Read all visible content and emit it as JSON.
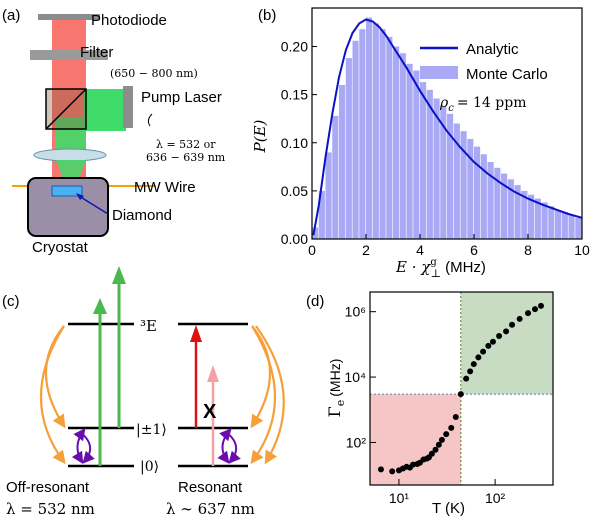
{
  "panel_a": {
    "label": "(a)",
    "photodiode": "Photodiode",
    "filter": "Filter",
    "filter_range": "(650 − 800 nm)",
    "pump_laser": "Pump Laser",
    "wavelength_line1": "λ = 532 or",
    "wavelength_line2": "636 − 639 nm",
    "mw_wire": "MW Wire",
    "diamond": "Diamond",
    "cryostat": "Cryostat"
  },
  "panel_b": {
    "label": "(b)",
    "legend_analytic": "Analytic",
    "legend_mc": "Monte Carlo",
    "rho_label": "ρ",
    "rho_sub": "c",
    "rho_value": "= 14 ppm",
    "ylabel_main": "P(E)",
    "xlabel_main": "E · χ",
    "xlabel_sup": "g",
    "xlabel_sub": "⊥",
    "xlabel_unit": "(MHz)",
    "colors": {
      "analytic": "#0a12c8",
      "mc": "#a9a9f5"
    }
  },
  "panel_c": {
    "label": "(c)",
    "level_3e": "³E",
    "level_pm1": "|±1⟩",
    "level_0": "|0⟩",
    "off_resonant": "Off-resonant",
    "off_resonant_wl": "λ = 532 nm",
    "resonant": "Resonant",
    "resonant_wl": "λ ∼ 637 nm",
    "cross": "X"
  },
  "panel_d": {
    "label": "(d)",
    "ylabel_main": "Γ",
    "ylabel_sub": "e",
    "ylabel_unit": "(MHz)",
    "xlabel": "T (K)",
    "colors": {
      "red_region": "#f6c5c5",
      "green_region": "#c8dcc4"
    }
  },
  "chart_data": [
    {
      "type": "bar",
      "panel": "b",
      "x_bin_width": 0.25,
      "x_start": 0,
      "values": [
        0.012,
        0.05,
        0.09,
        0.128,
        0.16,
        0.188,
        0.206,
        0.218,
        0.23,
        0.224,
        0.218,
        0.21,
        0.2,
        0.193,
        0.182,
        0.175,
        0.163,
        0.155,
        0.146,
        0.138,
        0.13,
        0.12,
        0.112,
        0.104,
        0.096,
        0.088,
        0.08,
        0.074,
        0.068,
        0.062,
        0.056,
        0.05,
        0.046,
        0.042,
        0.038,
        0.034,
        0.03,
        0.028,
        0.025,
        0.022
      ],
      "series_name": "Monte Carlo",
      "line_series": {
        "name": "Analytic",
        "x": [
          0.05,
          0.25,
          0.5,
          0.75,
          1.0,
          1.25,
          1.5,
          1.75,
          2.0,
          2.25,
          2.5,
          2.75,
          3.0,
          3.5,
          4.0,
          4.5,
          5.0,
          5.5,
          6.0,
          6.5,
          7.0,
          7.5,
          8.0,
          8.5,
          9.0,
          9.5,
          10.0
        ],
        "y": [
          0.004,
          0.035,
          0.085,
          0.13,
          0.168,
          0.196,
          0.214,
          0.224,
          0.228,
          0.226,
          0.22,
          0.211,
          0.2,
          0.178,
          0.154,
          0.132,
          0.112,
          0.095,
          0.08,
          0.068,
          0.058,
          0.049,
          0.042,
          0.036,
          0.031,
          0.026,
          0.022
        ]
      },
      "xlim": [
        0,
        10
      ],
      "ylim": [
        0,
        0.24
      ],
      "xticks": [
        "0",
        "2",
        "4",
        "6",
        "8",
        "10"
      ],
      "yticks": [
        "0.00",
        "0.05",
        "0.10",
        "0.15",
        "0.20"
      ],
      "ytick_values": [
        0,
        0.05,
        0.1,
        0.15,
        0.2
      ]
    },
    {
      "type": "scatter",
      "panel": "d",
      "x": [
        6.5,
        8.5,
        10,
        11,
        12,
        13,
        14,
        15.5,
        16.5,
        18,
        19.5,
        20.5,
        22,
        24,
        26,
        28,
        31,
        35,
        39,
        44,
        50,
        55,
        60,
        67,
        75,
        85,
        95,
        110,
        130,
        150,
        180,
        220,
        260,
        300
      ],
      "y": [
        15,
        13,
        14,
        16,
        18,
        17,
        21,
        22,
        24,
        30,
        32,
        35,
        45,
        60,
        85,
        120,
        180,
        280,
        600,
        3000,
        9000,
        15000,
        25000,
        40000,
        60000,
        90000,
        120000,
        180000,
        250000,
        400000,
        600000,
        900000,
        1200000,
        1500000
      ],
      "xscale": "log",
      "yscale": "log",
      "xlim": [
        5,
        400
      ],
      "ylim": [
        5,
        4000000
      ],
      "xticks": [
        "10¹",
        "10²"
      ],
      "yticks": [
        "10²",
        "10⁴",
        "10⁶"
      ],
      "threshold_T": 44,
      "threshold_G": 3000
    }
  ]
}
